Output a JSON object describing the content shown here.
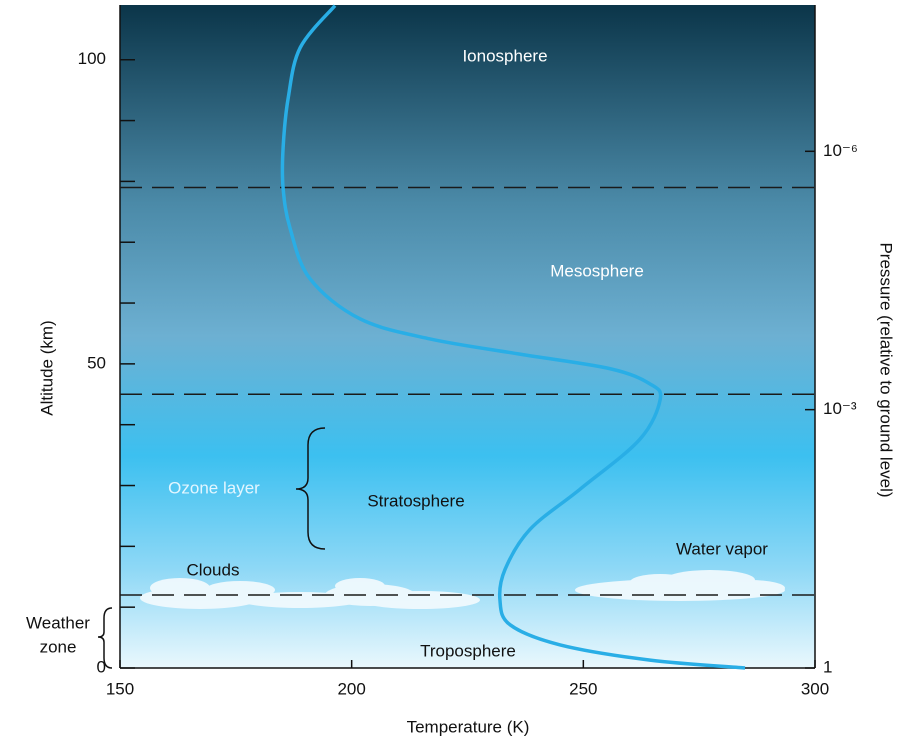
{
  "chart_data": {
    "type": "line",
    "x_label": "Temperature (K)",
    "y_label": "Altitude (km)",
    "y2_label": "Pressure (relative to ground level)",
    "xlim": [
      150,
      300
    ],
    "xticks": [
      150,
      200,
      250,
      300
    ],
    "ylim": [
      0,
      109
    ],
    "yticks": [
      0,
      50,
      100
    ],
    "yminorticks": [
      10,
      20,
      30,
      40,
      60,
      70,
      80,
      90
    ],
    "y2lim": [
      1,
      2e-08
    ],
    "y2scale": "log",
    "y2ticks": [
      {
        "value": 1,
        "label": "1"
      },
      {
        "value": 0.001,
        "label": "10⁻³"
      },
      {
        "value": 1e-06,
        "label": "10⁻⁶"
      }
    ],
    "layer_boundaries": [
      79,
      45,
      12
    ],
    "series": [
      {
        "color": "#29aee6",
        "x": [
          196.4,
          188.9,
          186.3,
          185.2,
          185.2,
          186.7,
          191.0,
          201.8,
          216.9,
          236.3,
          255.8,
          264.4,
          266.6,
          262.2,
          249.3,
          238.5,
          233.1,
          232.0,
          234.2,
          245.0,
          264.4,
          284.9
        ],
        "values": [
          108.9,
          102,
          93.7,
          85.5,
          78.9,
          72.3,
          64.0,
          57.4,
          54.1,
          51.6,
          49.2,
          46.7,
          44.2,
          37.6,
          29.4,
          22.8,
          16.2,
          11.2,
          7.1,
          3.8,
          1.3,
          0
        ]
      }
    ],
    "annotations": [
      "Ionosphere",
      "Mesosphere",
      "Stratosphere",
      "Troposphere",
      "Ozone layer",
      "Clouds",
      "Water vapor",
      "Weather",
      "zone"
    ]
  }
}
